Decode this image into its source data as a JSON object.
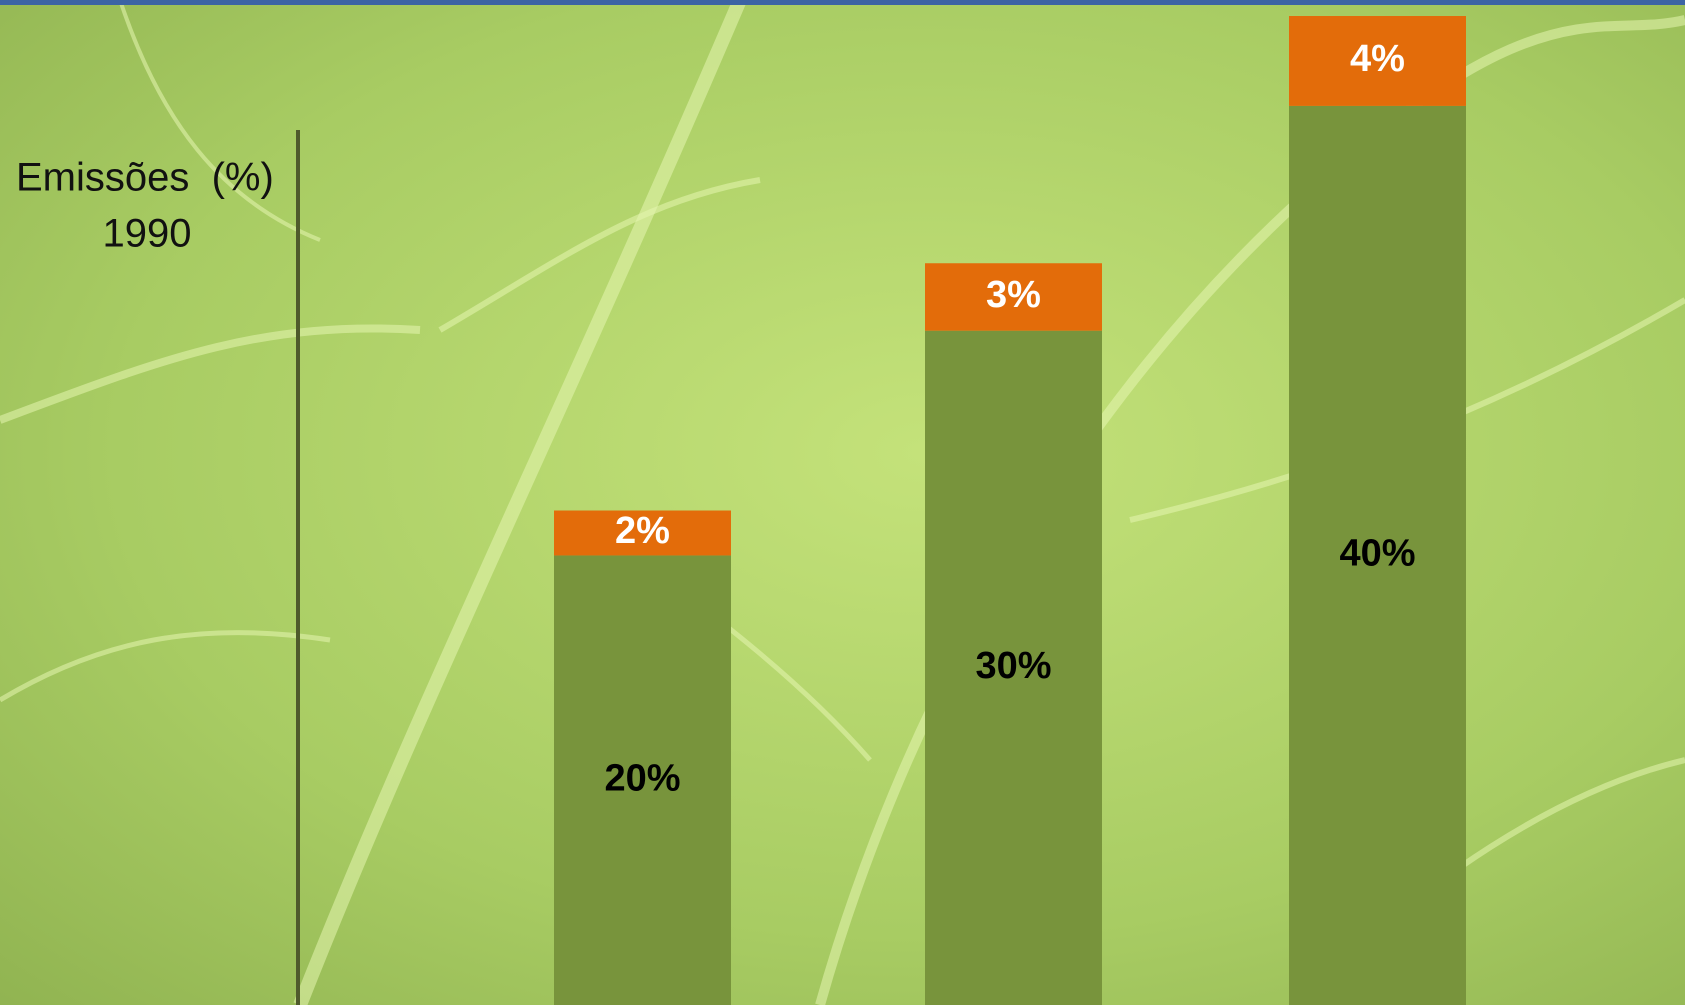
{
  "chart_data": {
    "type": "stacked_bar",
    "ylabel": [
      "Emissões  (%)",
      "1990"
    ],
    "categories": [
      null,
      null,
      null
    ],
    "series": [
      {
        "color": "#78943c",
        "label_color": "#000000",
        "values": [
          20,
          30,
          40
        ],
        "value_labels": [
          "20%",
          "30%",
          "40%"
        ]
      },
      {
        "color": "#e36c0a",
        "label_color": "#ffffff",
        "values": [
          2,
          3,
          4
        ],
        "value_labels": [
          "2%",
          "3%",
          "4%"
        ]
      }
    ],
    "ylim": [
      0,
      44
    ]
  }
}
